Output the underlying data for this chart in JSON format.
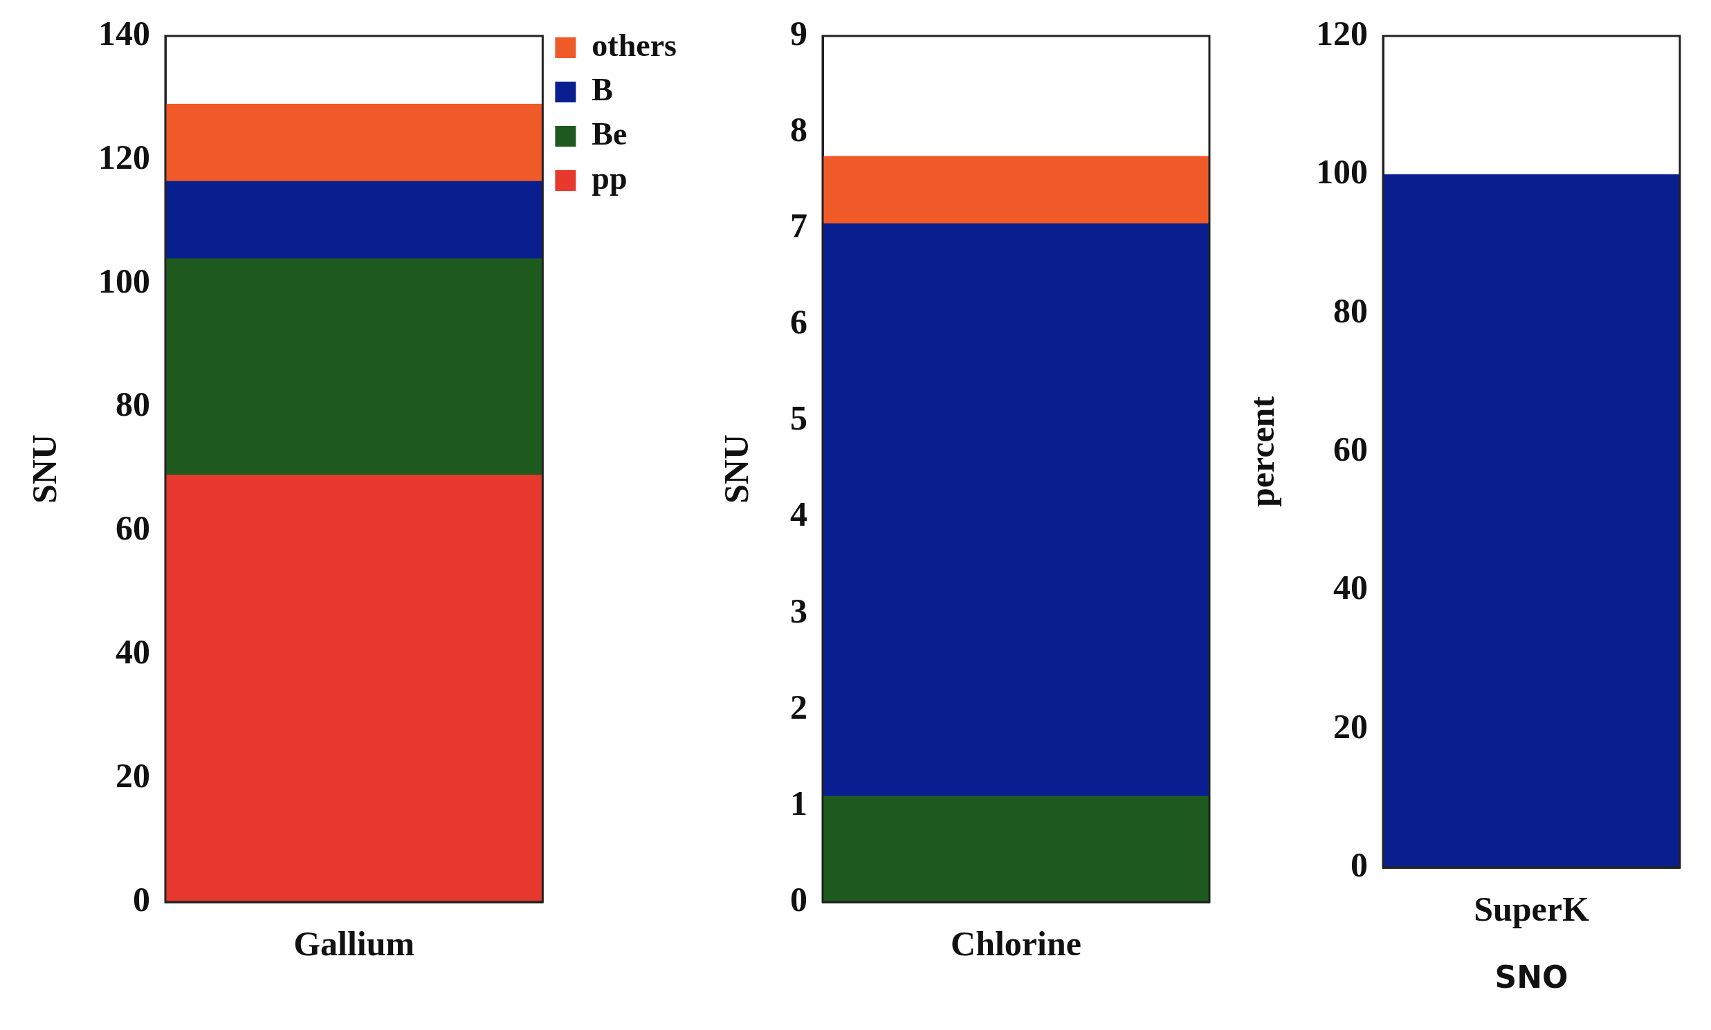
{
  "chart_data": [
    {
      "type": "bar",
      "stacked": true,
      "categories": [
        "Gallium"
      ],
      "ylabel": "SNU",
      "ylim": [
        0,
        140
      ],
      "yticks": [
        0,
        20,
        40,
        60,
        80,
        100,
        120,
        140
      ],
      "grid": false,
      "legend": "top right",
      "series": [
        {
          "name": "pp",
          "color": "#e8392e",
          "values": [
            69
          ]
        },
        {
          "name": "Be",
          "color": "#1e5a1e",
          "values": [
            35
          ]
        },
        {
          "name": "B",
          "color": "#0a1f8f",
          "values": [
            12.5
          ]
        },
        {
          "name": "others",
          "color": "#f05a28",
          "values": [
            12.5
          ]
        }
      ]
    },
    {
      "type": "bar",
      "stacked": true,
      "categories": [
        "Chlorine"
      ],
      "ylabel": "SNU",
      "ylim": [
        0,
        9
      ],
      "yticks": [
        0,
        1,
        2,
        3,
        4,
        5,
        6,
        7,
        8,
        9
      ],
      "grid": false,
      "series": [
        {
          "color": "#1e5a1e",
          "values": [
            1.1
          ]
        },
        {
          "color": "#0a1f8f",
          "values": [
            5.95
          ]
        },
        {
          "color": "#f05a28",
          "values": [
            0.7
          ]
        }
      ]
    },
    {
      "type": "bar",
      "stacked": true,
      "categories": [
        "SuperK"
      ],
      "ylabel": "percent",
      "ylim": [
        0,
        120
      ],
      "yticks": [
        0,
        20,
        40,
        60,
        80,
        100,
        120
      ],
      "grid": false,
      "annotations": [
        "SNO"
      ],
      "series": [
        {
          "color": "#0a1f8f",
          "values": [
            100
          ]
        }
      ]
    }
  ]
}
